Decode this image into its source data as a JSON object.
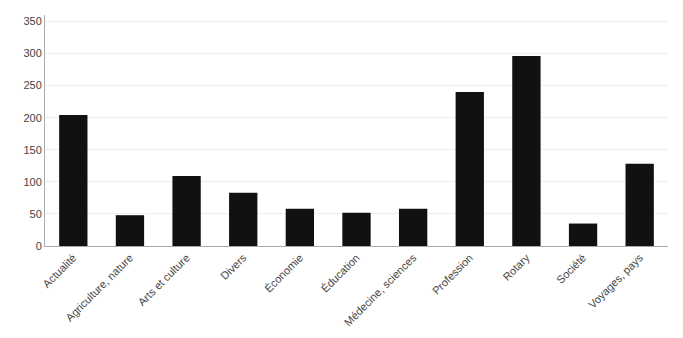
{
  "chart_data": {
    "type": "bar",
    "categories": [
      "Actualité",
      "Agriculture, nature",
      "Arts et culture",
      "Divers",
      "Économie",
      "Éducation",
      "Médecine, sciences",
      "Profession",
      "Rotary",
      "Société",
      "Voyages, pays"
    ],
    "values": [
      204,
      48,
      109,
      83,
      58,
      52,
      58,
      240,
      296,
      35,
      128
    ],
    "color": "#111111",
    "ylim": [
      0,
      360
    ],
    "yticks": [
      0,
      50,
      100,
      150,
      200,
      250,
      300,
      350
    ],
    "grid": true
  }
}
